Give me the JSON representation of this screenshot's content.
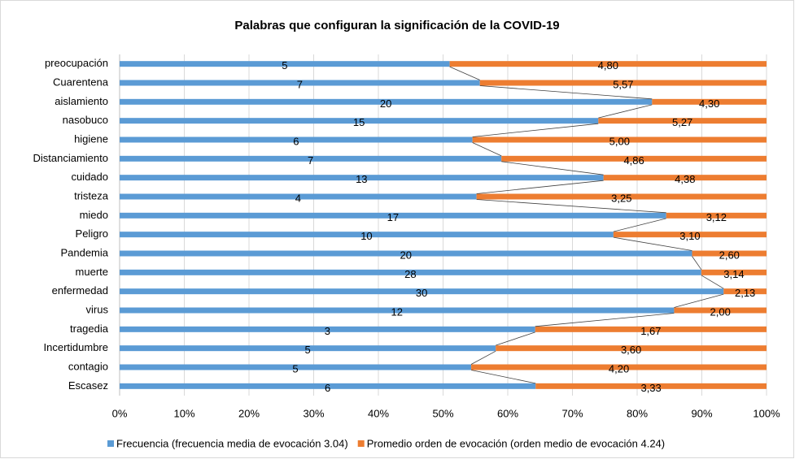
{
  "chart_data": {
    "type": "bar",
    "orientation": "horizontal",
    "stacked": "percent",
    "title": "Palabras que configuran la significación de la COVID-19",
    "categories": [
      "preocupación",
      "Cuarentena",
      "aislamiento",
      "nasobuco",
      "higiene",
      "Distanciamiento",
      "cuidado",
      "tristeza",
      "miedo",
      "Peligro",
      "Pandemia",
      "muerte",
      "enfermedad",
      "virus",
      "tragedia",
      "Incertidumbre",
      "contagio",
      "Escasez"
    ],
    "series": [
      {
        "name": "Frecuencia (frecuencia media de evocación 3.04)",
        "color": "#5b9bd5",
        "values": [
          5,
          7,
          20,
          15,
          6,
          7,
          13,
          4,
          17,
          10,
          20,
          28,
          30,
          12,
          3,
          5,
          5,
          6
        ]
      },
      {
        "name": "Promedio orden de evocación (orden medio de evocación 4.24)",
        "color": "#ed7d31",
        "values": [
          4.8,
          5.57,
          4.3,
          5.27,
          5.0,
          4.86,
          4.38,
          3.25,
          3.12,
          3.1,
          2.6,
          3.14,
          2.13,
          2.0,
          1.67,
          3.6,
          4.2,
          3.33
        ],
        "value_labels": [
          "4,80",
          "5,57",
          "4,30",
          "5,27",
          "5,00",
          "4,86",
          "4,38",
          "3,25",
          "3,12",
          "3,10",
          "2,60",
          "3,14",
          "2,13",
          "2,00",
          "1,67",
          "3,60",
          "4,20",
          "3,33"
        ]
      }
    ],
    "xlim": [
      0,
      100
    ],
    "xticks": [
      {
        "value": 0,
        "label": "0%"
      },
      {
        "value": 10,
        "label": "10%"
      },
      {
        "value": 20,
        "label": "20%"
      },
      {
        "value": 30,
        "label": "30%"
      },
      {
        "value": 40,
        "label": "40%"
      },
      {
        "value": 50,
        "label": "50%"
      },
      {
        "value": 60,
        "label": "60%"
      },
      {
        "value": 70,
        "label": "70%"
      },
      {
        "value": 80,
        "label": "80%"
      },
      {
        "value": 90,
        "label": "90%"
      },
      {
        "value": 100,
        "label": "100%"
      }
    ],
    "grid": true,
    "legend": "bottom",
    "series_lines": true
  }
}
